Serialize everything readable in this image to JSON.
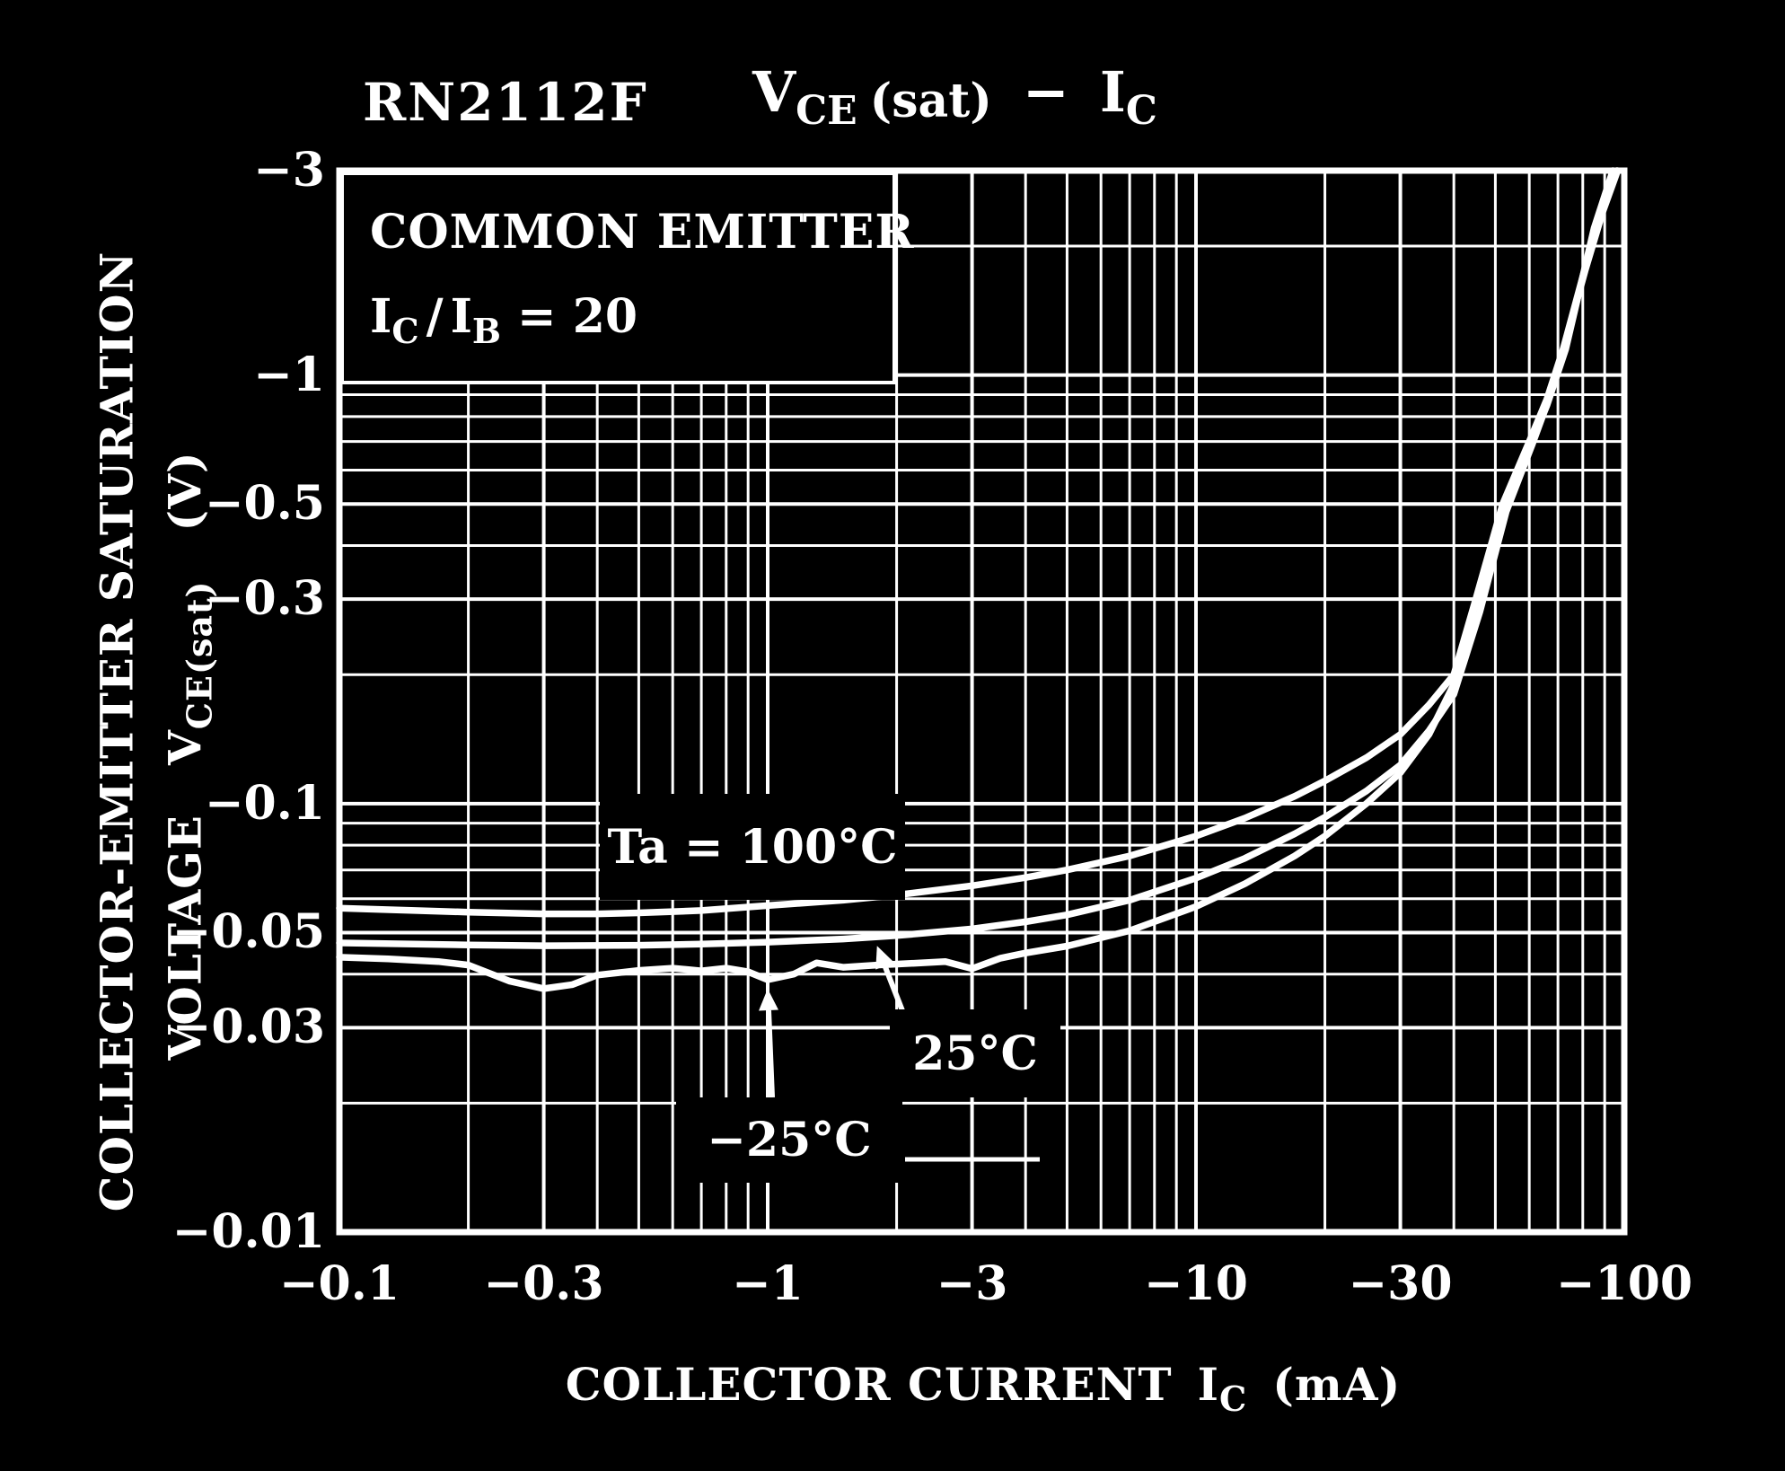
{
  "colors": {
    "background": "#000000",
    "foreground": "#ffffff"
  },
  "title": {
    "device": "RN2112F",
    "v_sym": "V",
    "v_sub": "CE",
    "sat": "(sat)",
    "dash": "−",
    "i_sym": "I",
    "i_sub": "C"
  },
  "inset": {
    "line1": "COMMON EMITTER",
    "ic_sym": "I",
    "ic_sub": "C",
    "slash": "/",
    "ib_sym": "I",
    "ib_sub": "B",
    "equals": "= 20"
  },
  "y_axis": {
    "title_line1": "COLLECTOR-EMITTER SATURATION",
    "title_line2_word": "VOLTAGE",
    "title_sym": "V",
    "title_sym_sub": "CE(sat)",
    "title_unit": "(V)",
    "tick_labels": [
      "−3",
      "−1",
      "−0.5",
      "−0.3",
      "−0.1",
      "−0.05",
      "−0.03",
      "−0.01"
    ],
    "tick_values": [
      3,
      1,
      0.5,
      0.3,
      0.1,
      0.05,
      0.03,
      0.01
    ]
  },
  "x_axis": {
    "title_text": "COLLECTOR CURRENT",
    "title_sym": "I",
    "title_sym_sub": "C",
    "title_unit": "(mA)",
    "tick_labels": [
      "−0.1",
      "−0.3",
      "−1",
      "−3",
      "−10",
      "−30",
      "−100"
    ],
    "tick_values": [
      0.1,
      0.3,
      1,
      3,
      10,
      30,
      100
    ]
  },
  "annotations": {
    "label_100": "Ta = 100°C",
    "label_25": "25°C",
    "label_m25": "−25°C",
    "arrow_25_target_mA": 1.8,
    "arrow_m25_target_mA": 1.0
  },
  "chart_data": {
    "type": "line",
    "title": "RN2112F  VCE(sat) − IC",
    "condition": "COMMON EMITTER, IC/IB = 20",
    "xlabel": "COLLECTOR CURRENT IC (mA)",
    "ylabel": "COLLECTOR-EMITTER SATURATION VOLTAGE VCE(sat) (V)",
    "x_scale": "log",
    "y_scale": "log",
    "x_range": [
      0.1,
      100
    ],
    "y_range": [
      0.01,
      3
    ],
    "grid": "full log-log grid, white on black",
    "legend_position": "inline labels with arrows",
    "values_are_magnitudes_of_negative_quantities": true,
    "series": [
      {
        "name": "Ta = 100°C",
        "points": [
          [
            0.1,
            0.057
          ],
          [
            0.15,
            0.0563
          ],
          [
            0.2,
            0.0558
          ],
          [
            0.3,
            0.0553
          ],
          [
            0.4,
            0.0553
          ],
          [
            0.5,
            0.0556
          ],
          [
            0.7,
            0.0563
          ],
          [
            1,
            0.0578
          ],
          [
            1.5,
            0.0595
          ],
          [
            2,
            0.0612
          ],
          [
            3,
            0.0643
          ],
          [
            4,
            0.0672
          ],
          [
            5,
            0.07
          ],
          [
            7,
            0.0755
          ],
          [
            10,
            0.084
          ],
          [
            13,
            0.0925
          ],
          [
            17,
            0.104
          ],
          [
            20,
            0.113
          ],
          [
            25,
            0.128
          ],
          [
            30,
            0.145
          ],
          [
            35,
            0.17
          ],
          [
            40,
            0.2
          ],
          [
            45,
            0.3
          ],
          [
            52,
            0.5
          ],
          [
            60,
            0.7
          ],
          [
            66,
            0.88
          ],
          [
            72,
            1.15
          ],
          [
            80,
            1.7
          ],
          [
            88,
            2.35
          ],
          [
            96,
            3.0
          ]
        ]
      },
      {
        "name": "25°C",
        "points": [
          [
            0.1,
            0.0473
          ],
          [
            0.2,
            0.0468
          ],
          [
            0.3,
            0.0466
          ],
          [
            0.5,
            0.0467
          ],
          [
            0.7,
            0.047
          ],
          [
            1,
            0.0475
          ],
          [
            1.5,
            0.0483
          ],
          [
            2,
            0.0492
          ],
          [
            3,
            0.051
          ],
          [
            4,
            0.053
          ],
          [
            5,
            0.055
          ],
          [
            7,
            0.0595
          ],
          [
            10,
            0.067
          ],
          [
            13,
            0.0745
          ],
          [
            17,
            0.085
          ],
          [
            20,
            0.093
          ],
          [
            25,
            0.107
          ],
          [
            30,
            0.123
          ],
          [
            35,
            0.148
          ],
          [
            40,
            0.18
          ],
          [
            46,
            0.28
          ],
          [
            53,
            0.48
          ],
          [
            61,
            0.69
          ],
          [
            67,
            0.89
          ],
          [
            73,
            1.2
          ],
          [
            81,
            1.75
          ],
          [
            89,
            2.4
          ],
          [
            96.5,
            3.0
          ]
        ]
      },
      {
        "name": "−25°C",
        "points": [
          [
            0.1,
            0.0438
          ],
          [
            0.13,
            0.0434
          ],
          [
            0.17,
            0.0428
          ],
          [
            0.2,
            0.042
          ],
          [
            0.25,
            0.0385
          ],
          [
            0.3,
            0.037
          ],
          [
            0.35,
            0.0378
          ],
          [
            0.4,
            0.0398
          ],
          [
            0.5,
            0.0408
          ],
          [
            0.6,
            0.0413
          ],
          [
            0.7,
            0.0407
          ],
          [
            0.8,
            0.0413
          ],
          [
            0.9,
            0.0405
          ],
          [
            1,
            0.0388
          ],
          [
            1.15,
            0.04
          ],
          [
            1.3,
            0.0425
          ],
          [
            1.5,
            0.0415
          ],
          [
            1.8,
            0.042
          ],
          [
            2.2,
            0.0424
          ],
          [
            2.6,
            0.0428
          ],
          [
            3,
            0.0412
          ],
          [
            3.5,
            0.0436
          ],
          [
            4,
            0.0448
          ],
          [
            5,
            0.0465
          ],
          [
            7,
            0.0505
          ],
          [
            10,
            0.0575
          ],
          [
            13,
            0.065
          ],
          [
            17,
            0.0755
          ],
          [
            20,
            0.084
          ],
          [
            25,
            0.1
          ],
          [
            30,
            0.118
          ],
          [
            35,
            0.145
          ],
          [
            40,
            0.19
          ],
          [
            46,
            0.32
          ],
          [
            55,
            0.55
          ],
          [
            66,
            0.85
          ],
          [
            73,
            1.15
          ],
          [
            85,
            2.2
          ],
          [
            94,
            3.0
          ]
        ]
      }
    ]
  }
}
